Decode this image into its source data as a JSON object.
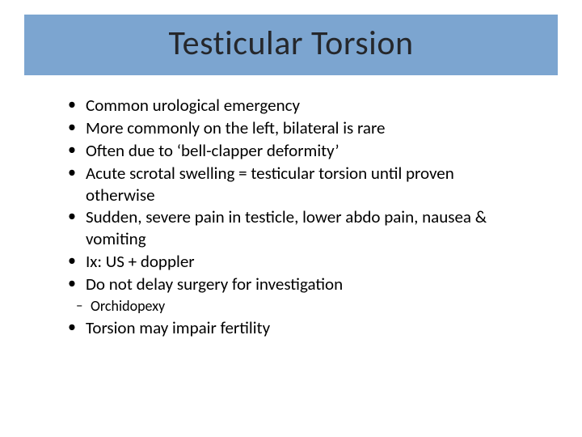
{
  "slide": {
    "title": "Testicular Torsion",
    "title_bg_color": "#7ca5d0",
    "title_text_color": "#25272b",
    "title_fontsize": 42,
    "body_fontsize": 21,
    "sub_fontsize": 18,
    "background_color": "#ffffff",
    "bullets": [
      "Common urological emergency",
      "More commonly on the left, bilateral is rare",
      "Often due to ‘bell-clapper deformity’",
      "Acute scrotal swelling = testicular torsion until proven otherwise",
      "Sudden, severe pain in testicle, lower abdo pain, nausea & vomiting",
      "Ix: US + doppler",
      "Do not delay surgery for investigation"
    ],
    "sub_bullets": [
      "Orchidopexy"
    ],
    "final_bullet": "Torsion may impair fertility"
  }
}
